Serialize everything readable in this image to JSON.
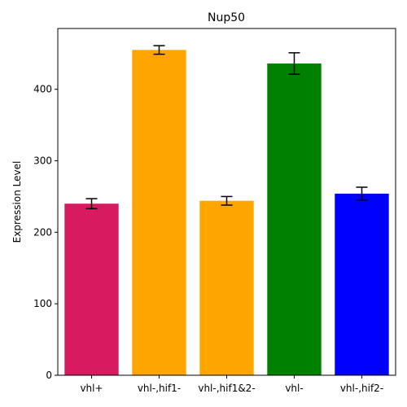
{
  "chart_data": {
    "type": "bar",
    "title": "Nup50",
    "xlabel": "",
    "ylabel": "Expression Level",
    "ylim": [
      0,
      485
    ],
    "yticks": [
      0,
      100,
      200,
      300,
      400
    ],
    "grid": false,
    "legend": "none",
    "categories": [
      "vhl+",
      "vhl-,hif1-",
      "vhl-,hif1&2-",
      "vhl-",
      "vhl-,hif2-"
    ],
    "values": [
      240,
      455,
      244,
      436,
      254
    ],
    "errors": [
      7,
      6,
      6,
      15,
      9
    ],
    "colors": [
      "#d81b60",
      "#ffa500",
      "#ffa500",
      "#008000",
      "#0000ff"
    ]
  }
}
